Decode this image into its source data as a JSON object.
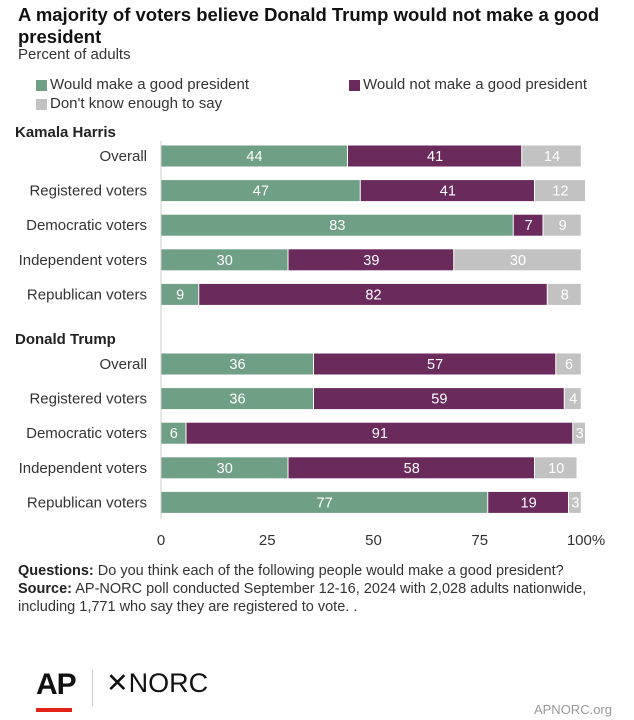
{
  "title": "A majority of voters believe Donald Trump would not make a good president",
  "subtitle": "Percent of adults",
  "legend": [
    {
      "label": "Would make a good president",
      "color": "#6f9f85"
    },
    {
      "label": "Would not make a good president",
      "color": "#6a2a5c"
    },
    {
      "label": "Don't know enough to say",
      "color": "#c2c2c2"
    }
  ],
  "notes": {
    "questions_label": "Questions:",
    "questions_text": "Do you think each of the following people would make a good president?",
    "source_label": "Source:",
    "source_text": "AP-NORC poll conducted September 12-16, 2024 with 2,028 adults nationwide, including 1,771 who say they are registered to vote. ."
  },
  "logos": {
    "ap": "AP",
    "norc": "NORC",
    "norc_mark": "✕"
  },
  "footer_url": "APNORC.org",
  "chart_data": {
    "type": "bar",
    "orientation": "horizontal",
    "stacked": true,
    "xlim": [
      0,
      100
    ],
    "xticks": [
      "0",
      "25",
      "50",
      "75",
      "100%"
    ],
    "series": [
      {
        "name": "Would make a good president",
        "color": "#6f9f85"
      },
      {
        "name": "Would not make a good president",
        "color": "#6a2a5c"
      },
      {
        "name": "Don't know enough to say",
        "color": "#c2c2c2"
      }
    ],
    "groups": [
      {
        "name": "Kamala Harris",
        "rows": [
          {
            "label": "Overall",
            "values": [
              44,
              41,
              14
            ]
          },
          {
            "label": "Registered voters",
            "values": [
              47,
              41,
              12
            ]
          },
          {
            "label": "Democratic voters",
            "values": [
              83,
              7,
              9
            ]
          },
          {
            "label": "Independent voters",
            "values": [
              30,
              39,
              30
            ]
          },
          {
            "label": "Republican voters",
            "values": [
              9,
              82,
              8
            ]
          }
        ]
      },
      {
        "name": "Donald Trump",
        "rows": [
          {
            "label": "Overall",
            "values": [
              36,
              57,
              6
            ]
          },
          {
            "label": "Registered voters",
            "values": [
              36,
              59,
              4
            ]
          },
          {
            "label": "Democratic voters",
            "values": [
              6,
              91,
              3
            ]
          },
          {
            "label": "Independent voters",
            "values": [
              30,
              58,
              10
            ]
          },
          {
            "label": "Republican voters",
            "values": [
              77,
              19,
              3
            ]
          }
        ]
      }
    ]
  }
}
